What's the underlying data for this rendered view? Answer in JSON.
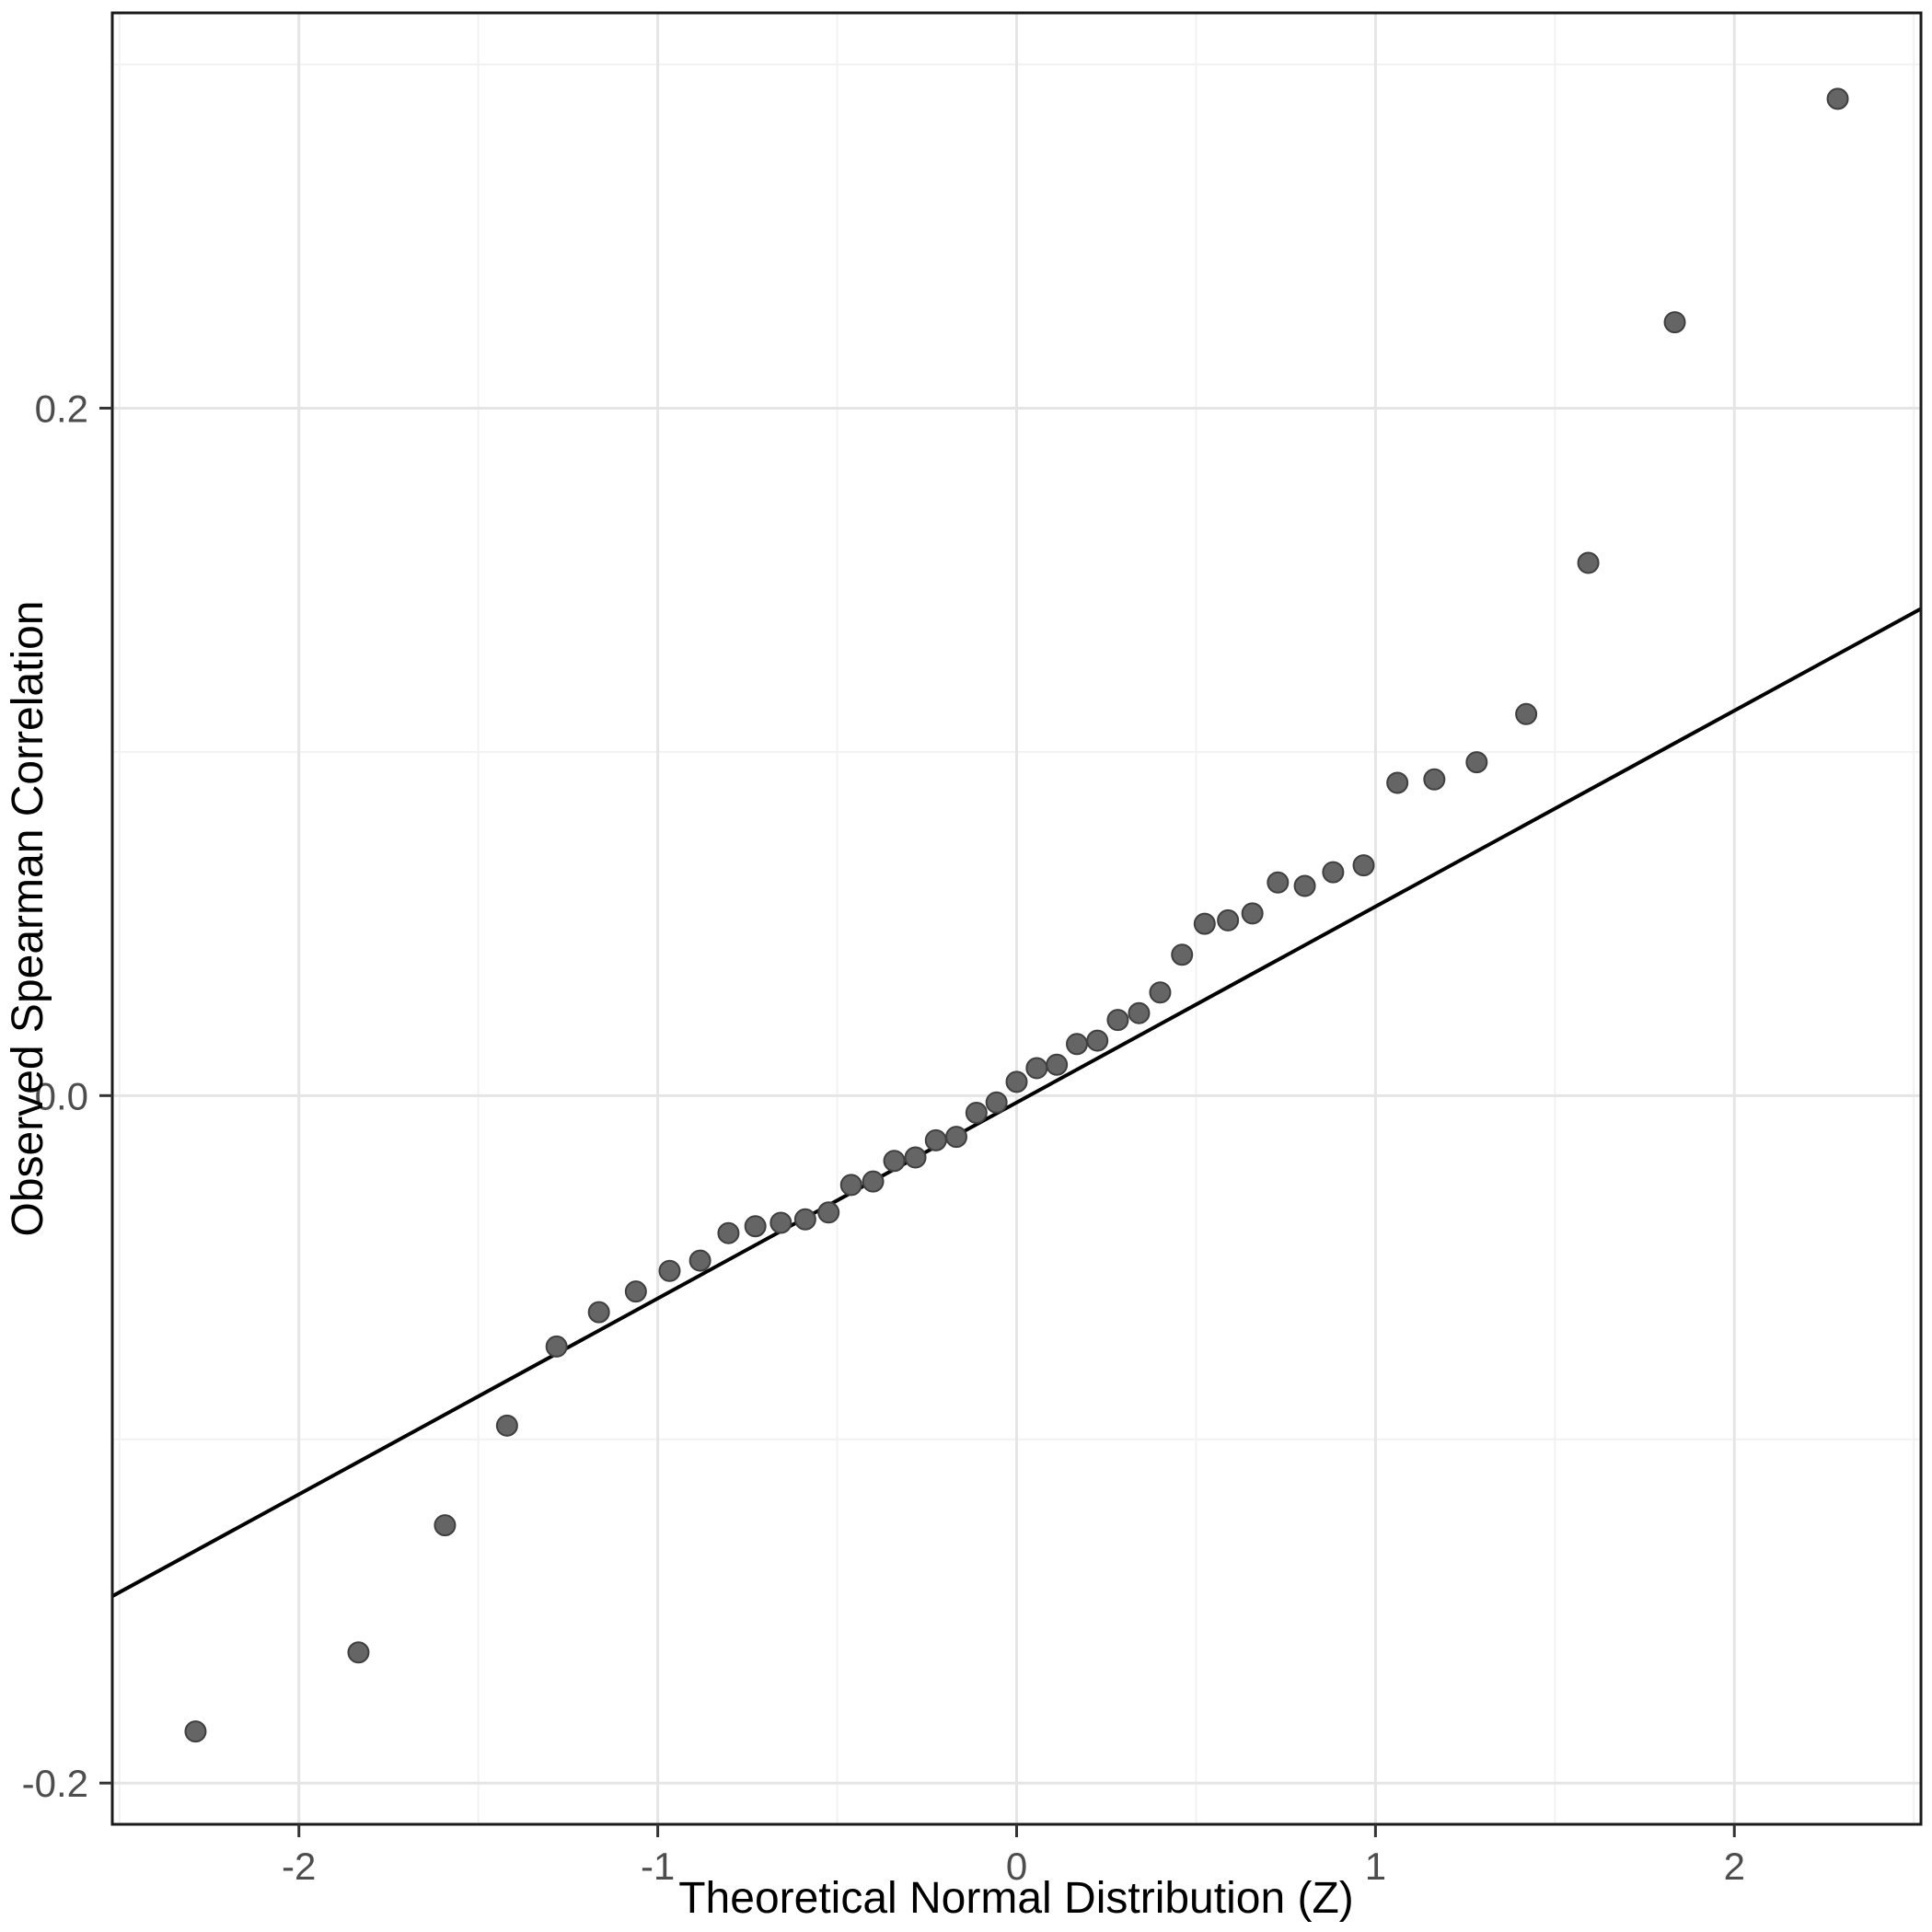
{
  "figure": {
    "background": "#ffffff",
    "panel_background": "#ffffff"
  },
  "chart_data": {
    "type": "scatter",
    "title": "",
    "xlabel": "Theoretical Normal Distribution (Z)",
    "ylabel": "Observed Spearman Correlation",
    "x_domain": [
      -2.52,
      2.52
    ],
    "y_domain": [
      -0.212,
      0.315
    ],
    "grid": true,
    "legend": "none",
    "x_ticks": [
      {
        "value": -2,
        "label": "-2"
      },
      {
        "value": -1,
        "label": "-1"
      },
      {
        "value": 0,
        "label": "0"
      },
      {
        "value": 1,
        "label": "1"
      },
      {
        "value": 2,
        "label": "2"
      }
    ],
    "y_ticks": [
      {
        "value": -0.2,
        "label": "-0.2"
      },
      {
        "value": 0.0,
        "label": "0.0"
      },
      {
        "value": 0.2,
        "label": "0.2"
      }
    ],
    "x_minor": [
      -2.5,
      -1.5,
      -0.5,
      0.5,
      1.5,
      2.5
    ],
    "y_minor": [
      -0.1,
      0.1,
      0.3
    ],
    "reference_line": {
      "slope": 0.057,
      "intercept": -0.002,
      "color": "#000000"
    },
    "point_style": {
      "fill": "#656565",
      "stroke": "#3f3f3f",
      "radius": 11
    },
    "points": [
      [
        -2.288,
        -0.185
      ],
      [
        -1.834,
        -0.162
      ],
      [
        -1.593,
        -0.125
      ],
      [
        -1.42,
        -0.096
      ],
      [
        -1.282,
        -0.073
      ],
      [
        -1.164,
        -0.063
      ],
      [
        -1.061,
        -0.057
      ],
      [
        -0.967,
        -0.051
      ],
      [
        -0.882,
        -0.048
      ],
      [
        -0.803,
        -0.04
      ],
      [
        -0.728,
        -0.038
      ],
      [
        -0.657,
        -0.037
      ],
      [
        -0.589,
        -0.036
      ],
      [
        -0.524,
        -0.034
      ],
      [
        -0.461,
        -0.026
      ],
      [
        -0.4,
        -0.025
      ],
      [
        -0.341,
        -0.019
      ],
      [
        -0.282,
        -0.018
      ],
      [
        -0.225,
        -0.013
      ],
      [
        -0.168,
        -0.012
      ],
      [
        -0.112,
        -0.005
      ],
      [
        -0.056,
        -0.002
      ],
      [
        0.0,
        0.004
      ],
      [
        0.056,
        0.008
      ],
      [
        0.112,
        0.009
      ],
      [
        0.168,
        0.015
      ],
      [
        0.225,
        0.016
      ],
      [
        0.282,
        0.022
      ],
      [
        0.341,
        0.024
      ],
      [
        0.4,
        0.03
      ],
      [
        0.461,
        0.041
      ],
      [
        0.524,
        0.05
      ],
      [
        0.589,
        0.051
      ],
      [
        0.657,
        0.053
      ],
      [
        0.728,
        0.062
      ],
      [
        0.803,
        0.061
      ],
      [
        0.882,
        0.065
      ],
      [
        0.967,
        0.067
      ],
      [
        1.061,
        0.091
      ],
      [
        1.164,
        0.092
      ],
      [
        1.282,
        0.097
      ],
      [
        1.42,
        0.111
      ],
      [
        1.593,
        0.155
      ],
      [
        1.834,
        0.225
      ],
      [
        2.288,
        0.29
      ]
    ]
  }
}
